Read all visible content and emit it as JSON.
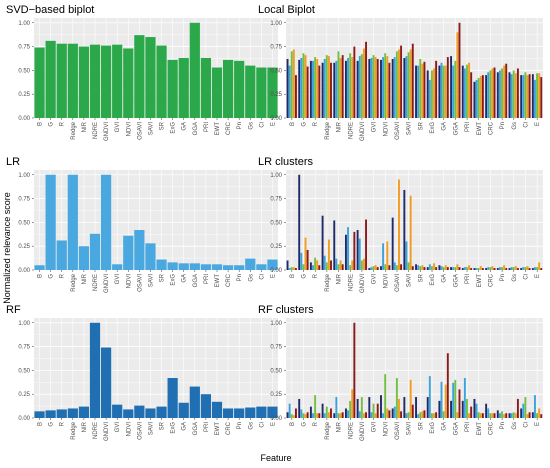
{
  "figure": {
    "ylabel": "Normalized relevance score",
    "xlabel": "Feature"
  },
  "colors": {
    "panel_bg": "#ebebeb",
    "grid": "#ffffff",
    "svd": "#2ba84a",
    "lr": "#4aa8e0",
    "rf": "#1f6fb2",
    "cluster_series": [
      "#1f2a6b",
      "#3aa3db",
      "#74c043",
      "#f39c1f",
      "#8b1a1a"
    ]
  },
  "chart_data": [
    {
      "id": "svd",
      "type": "bar",
      "title": "SVD−based biplot",
      "categories": [
        "B",
        "G",
        "R",
        "Redge",
        "NIR",
        "NDRE",
        "GNDVI",
        "GVI",
        "NDVI",
        "OSAVI",
        "SAVI",
        "SR",
        "ExG",
        "GA",
        "GGA",
        "PRI",
        "EWT",
        "CRC",
        "Pn",
        "Gs",
        "Ci",
        "E"
      ],
      "values": [
        0.74,
        0.81,
        0.78,
        0.78,
        0.75,
        0.77,
        0.76,
        0.77,
        0.73,
        0.87,
        0.85,
        0.76,
        0.61,
        0.63,
        1.0,
        0.63,
        0.53,
        0.61,
        0.6,
        0.55,
        0.53,
        0.53
      ],
      "ylim": [
        0,
        1.05
      ],
      "yticks": [
        "0.00",
        "0.25",
        "0.50",
        "0.75",
        "1.00"
      ]
    },
    {
      "id": "local",
      "type": "bar",
      "title": "Local Biplot",
      "categories": [
        "B",
        "G",
        "R",
        "Redge",
        "NIR",
        "NDRE",
        "GNDVI",
        "GVI",
        "NDVI",
        "OSAVI",
        "SAVI",
        "SR",
        "ExG",
        "GA",
        "GGA",
        "PRI",
        "EWT",
        "CRC",
        "Pn",
        "Gs",
        "Ci",
        "E"
      ],
      "series": [
        {
          "values": [
            0.62,
            0.61,
            0.6,
            0.58,
            0.58,
            0.6,
            0.6,
            0.62,
            0.61,
            0.62,
            0.63,
            0.55,
            0.5,
            0.55,
            0.65,
            0.55,
            0.38,
            0.45,
            0.48,
            0.48,
            0.45,
            0.46
          ]
        },
        {
          "values": [
            0.55,
            0.63,
            0.6,
            0.62,
            0.6,
            0.63,
            0.65,
            0.63,
            0.64,
            0.64,
            0.65,
            0.55,
            0.4,
            0.58,
            0.55,
            0.52,
            0.4,
            0.48,
            0.5,
            0.46,
            0.45,
            0.4
          ]
        },
        {
          "values": [
            0.7,
            0.68,
            0.64,
            0.66,
            0.7,
            0.68,
            0.67,
            0.66,
            0.68,
            0.7,
            0.69,
            0.62,
            0.5,
            0.55,
            0.6,
            0.56,
            0.42,
            0.5,
            0.52,
            0.5,
            0.48,
            0.47
          ]
        },
        {
          "values": [
            0.72,
            0.66,
            0.62,
            0.65,
            0.63,
            0.64,
            0.73,
            0.64,
            0.65,
            0.72,
            0.72,
            0.57,
            0.52,
            0.55,
            0.9,
            0.58,
            0.44,
            0.52,
            0.55,
            0.47,
            0.45,
            0.47
          ]
        },
        {
          "values": [
            0.45,
            0.54,
            0.55,
            0.58,
            0.66,
            0.75,
            0.8,
            0.62,
            0.58,
            0.76,
            0.78,
            0.59,
            0.6,
            0.64,
            1.0,
            0.48,
            0.45,
            0.53,
            0.57,
            0.52,
            0.46,
            0.43
          ]
        }
      ],
      "ylim": [
        0,
        1.05
      ],
      "yticks": [
        "0.00",
        "0.25",
        "0.50",
        "0.75",
        "1.00"
      ]
    },
    {
      "id": "lr",
      "type": "bar",
      "title": "LR",
      "categories": [
        "B",
        "G",
        "R",
        "Redge",
        "NIR",
        "NDRE",
        "GNDVI",
        "GVI",
        "NDVI",
        "OSAVI",
        "SAVI",
        "SR",
        "ExG",
        "GA",
        "GGA",
        "PRI",
        "EWT",
        "CRC",
        "Pn",
        "Gs",
        "Ci",
        "E"
      ],
      "values": [
        0.05,
        1.0,
        0.31,
        1.0,
        0.25,
        0.38,
        1.0,
        0.06,
        0.36,
        0.42,
        0.28,
        0.11,
        0.08,
        0.07,
        0.07,
        0.06,
        0.06,
        0.05,
        0.05,
        0.12,
        0.06,
        0.11
      ],
      "ylim": [
        0,
        1.05
      ],
      "yticks": [
        "0.00",
        "0.25",
        "0.50",
        "0.75",
        "1.00"
      ]
    },
    {
      "id": "lrc",
      "type": "bar",
      "title": "LR clusters",
      "categories": [
        "B",
        "G",
        "R",
        "Redge",
        "NIR",
        "NDRE",
        "GNDVI",
        "GVI",
        "NDVI",
        "OSAVI",
        "SAVI",
        "SR",
        "ExG",
        "GA",
        "GGA",
        "PRI",
        "EWT",
        "CRC",
        "Pn",
        "Gs",
        "Ci",
        "E"
      ],
      "series": [
        {
          "values": [
            0.1,
            1.0,
            0.08,
            0.57,
            0.52,
            0.37,
            0.42,
            0.02,
            0.04,
            0.55,
            0.84,
            0.06,
            0.03,
            0.05,
            0.03,
            0.02,
            0.02,
            0.02,
            0.02,
            0.02,
            0.02,
            0.02
          ]
        },
        {
          "values": [
            0.02,
            0.18,
            0.05,
            0.15,
            0.12,
            0.45,
            0.33,
            0.03,
            0.28,
            0.08,
            0.3,
            0.05,
            0.06,
            0.04,
            0.03,
            0.03,
            0.02,
            0.03,
            0.03,
            0.03,
            0.03,
            0.03
          ]
        },
        {
          "values": [
            0.03,
            0.06,
            0.13,
            0.08,
            0.06,
            0.05,
            0.1,
            0.04,
            0.06,
            0.05,
            0.08,
            0.04,
            0.04,
            0.03,
            0.03,
            0.03,
            0.02,
            0.03,
            0.03,
            0.03,
            0.03,
            0.03
          ]
        },
        {
          "values": [
            0.03,
            0.34,
            0.1,
            0.32,
            0.1,
            0.1,
            0.12,
            0.05,
            0.3,
            0.95,
            0.78,
            0.05,
            0.07,
            0.05,
            0.06,
            0.05,
            0.04,
            0.04,
            0.05,
            0.04,
            0.04,
            0.08
          ]
        },
        {
          "values": [
            0.02,
            0.21,
            0.05,
            0.1,
            0.06,
            0.4,
            0.53,
            0.03,
            0.05,
            0.06,
            0.04,
            0.03,
            0.03,
            0.03,
            0.03,
            0.02,
            0.02,
            0.02,
            0.02,
            0.02,
            0.02,
            0.02
          ]
        }
      ],
      "ylim": [
        0,
        1.05
      ],
      "yticks": [
        "0.00",
        "0.25",
        "0.50",
        "0.75",
        "1.00"
      ]
    },
    {
      "id": "rf",
      "type": "bar",
      "title": "RF",
      "categories": [
        "B",
        "G",
        "R",
        "Redge",
        "NIR",
        "NDRE",
        "GNDVI",
        "GVI",
        "NDVI",
        "OSAVI",
        "SAVI",
        "SR",
        "ExG",
        "GA",
        "GGA",
        "PRI",
        "EWT",
        "CRC",
        "Pn",
        "Gs",
        "Ci",
        "E"
      ],
      "values": [
        0.07,
        0.08,
        0.09,
        0.1,
        0.12,
        1.0,
        0.74,
        0.14,
        0.09,
        0.13,
        0.1,
        0.12,
        0.42,
        0.16,
        0.33,
        0.25,
        0.17,
        0.1,
        0.1,
        0.11,
        0.12,
        0.12
      ],
      "ylim": [
        0,
        1.05
      ],
      "yticks": [
        "0.00",
        "0.25",
        "0.50",
        "0.75",
        "1.00"
      ]
    },
    {
      "id": "rfc",
      "type": "bar",
      "title": "RF clusters",
      "categories": [
        "B",
        "G",
        "R",
        "Redge",
        "NIR",
        "NDRE",
        "GNDVI",
        "GVI",
        "NDVI",
        "OSAVI",
        "SAVI",
        "SR",
        "ExG",
        "GA",
        "GGA",
        "PRI",
        "EWT",
        "CRC",
        "Pn",
        "Gs",
        "Ci",
        "E"
      ],
      "series": [
        {
          "values": [
            0.06,
            0.2,
            0.12,
            0.15,
            0.05,
            0.1,
            0.2,
            0.22,
            0.24,
            0.1,
            0.22,
            0.22,
            0.22,
            0.18,
            0.18,
            0.18,
            0.2,
            0.15,
            0.08,
            0.05,
            0.1,
            0.06
          ]
        },
        {
          "values": [
            0.15,
            0.09,
            0.05,
            0.05,
            0.22,
            0.08,
            0.07,
            0.06,
            0.05,
            0.12,
            0.05,
            0.04,
            0.44,
            0.38,
            0.37,
            0.42,
            0.15,
            0.1,
            0.05,
            0.05,
            0.15,
            0.24
          ]
        },
        {
          "values": [
            0.04,
            0.05,
            0.24,
            0.12,
            0.05,
            0.18,
            0.22,
            0.15,
            0.46,
            0.42,
            0.06,
            0.06,
            0.05,
            0.07,
            0.4,
            0.2,
            0.06,
            0.05,
            0.07,
            0.06,
            0.22,
            0.05
          ]
        },
        {
          "values": [
            0.03,
            0.04,
            0.05,
            0.06,
            0.05,
            0.3,
            0.05,
            0.05,
            0.1,
            0.2,
            0.4,
            0.07,
            0.05,
            0.35,
            0.06,
            0.05,
            0.05,
            0.05,
            0.04,
            0.05,
            0.04,
            0.1
          ]
        },
        {
          "values": [
            0.1,
            0.06,
            0.05,
            0.1,
            0.06,
            1.0,
            0.06,
            0.15,
            0.08,
            0.07,
            0.14,
            0.08,
            0.06,
            0.68,
            0.3,
            0.12,
            0.05,
            0.05,
            0.05,
            0.2,
            0.06,
            0.04
          ]
        }
      ],
      "ylim": [
        0,
        1.05
      ],
      "yticks": [
        "0.00",
        "0.25",
        "0.50",
        "0.75",
        "1.00"
      ]
    }
  ]
}
